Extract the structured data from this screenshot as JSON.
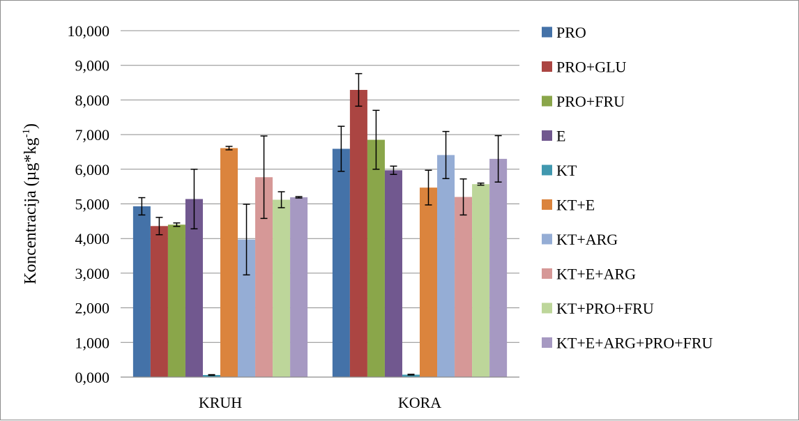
{
  "chart_data": {
    "type": "bar",
    "title": "",
    "xlabel": "",
    "ylabel": "Koncentracija (µg*kg-1)",
    "ylabel_parts": {
      "main": "Koncentracija (µg*kg",
      "sup": "-1",
      "close": ")"
    },
    "ylim": [
      0,
      10
    ],
    "yticks": [
      "0,000",
      "1,000",
      "2,000",
      "3,000",
      "4,000",
      "5,000",
      "6,000",
      "7,000",
      "8,000",
      "9,000",
      "10,000"
    ],
    "grid": "horizontal",
    "legend_position": "right",
    "categories": [
      "KRUH",
      "KORA"
    ],
    "series": [
      {
        "name": "PRO",
        "color": "#4472a8",
        "values": [
          4.93,
          6.59
        ],
        "errors": [
          0.25,
          0.65
        ]
      },
      {
        "name": "PRO+GLU",
        "color": "#ab4542",
        "values": [
          4.36,
          8.29
        ],
        "errors": [
          0.25,
          0.47
        ]
      },
      {
        "name": "PRO+FRU",
        "color": "#8aa64a",
        "values": [
          4.4,
          6.85
        ],
        "errors": [
          0.05,
          0.85
        ]
      },
      {
        "name": "E",
        "color": "#71588f",
        "values": [
          5.14,
          5.97
        ],
        "errors": [
          0.86,
          0.12
        ]
      },
      {
        "name": "KT",
        "color": "#4198af",
        "values": [
          0.06,
          0.07
        ],
        "errors": [
          0.01,
          0.01
        ]
      },
      {
        "name": "KT+E",
        "color": "#db843d",
        "values": [
          6.61,
          5.47
        ],
        "errors": [
          0.05,
          0.5
        ]
      },
      {
        "name": "KT+ARG",
        "color": "#95add5",
        "values": [
          3.97,
          6.41
        ],
        "errors": [
          1.02,
          0.68
        ]
      },
      {
        "name": "KT+E+ARG",
        "color": "#d69897",
        "values": [
          5.77,
          5.2
        ],
        "errors": [
          1.19,
          0.52
        ]
      },
      {
        "name": "KT+PRO+FRU",
        "color": "#bdd69a",
        "values": [
          5.12,
          5.57
        ],
        "errors": [
          0.23,
          0.03
        ]
      },
      {
        "name": "KT+E+ARG+PRO+FRU",
        "color": "#a699c2",
        "values": [
          5.19,
          6.3
        ],
        "errors": [
          0.02,
          0.67
        ]
      }
    ]
  }
}
